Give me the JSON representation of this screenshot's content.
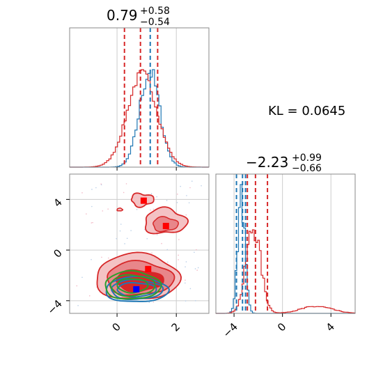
{
  "annotation": {
    "kl_text": "KL = 0.0645"
  },
  "colors": {
    "blue": "#1f77b4",
    "red": "#d62728",
    "green": "#2ca02c",
    "grid": "#cccccc",
    "frame": "#888888",
    "fill_red": "#e8868a",
    "fill_red_light": "#f4c2c4"
  },
  "chart_data": [
    {
      "type": "histogram",
      "panel": "marginal-x",
      "title_value": "0.79",
      "title_plus": "+0.58",
      "title_minus": "−0.54",
      "xlim": [
        -1.6,
        3.1
      ],
      "x_ticks": [
        0,
        2
      ],
      "grid": true,
      "series": [
        {
          "color_key": "blue",
          "mean": 1.1,
          "sd": 0.34,
          "quantiles": [
            1.12
          ]
        },
        {
          "color_key": "red",
          "mean": 0.85,
          "sd": 0.5,
          "quantiles": [
            0.25,
            0.79,
            1.37
          ]
        }
      ]
    },
    {
      "type": "histogram",
      "panel": "marginal-y",
      "title_value": "−2.23",
      "title_plus": "+0.99",
      "title_minus": "−0.66",
      "xlim": [
        -5.5,
        6.0
      ],
      "x_ticks": [
        -4,
        0,
        4
      ],
      "x_tick_labels": [
        "−4",
        "0",
        "4"
      ],
      "grid": true,
      "series": [
        {
          "color_key": "blue",
          "mean": -3.4,
          "sd": 0.3,
          "quantiles": [
            -3.8,
            -3.3,
            -3.05
          ]
        },
        {
          "color_key": "red",
          "mean": -2.4,
          "sd": 0.6,
          "quantiles": [
            -2.9,
            -2.23,
            -1.24
          ]
        }
      ]
    },
    {
      "type": "contour",
      "panel": "joint",
      "xlim": [
        -1.6,
        3.1
      ],
      "ylim": [
        -5.0,
        6.0
      ],
      "x_ticks": [
        0,
        2
      ],
      "y_ticks": [
        -4,
        0,
        4
      ],
      "y_tick_labels": [
        "−4",
        "0",
        "4"
      ],
      "grid": true,
      "series": [
        {
          "color_key": "red",
          "points": [
            [
              0.9,
              3.9
            ],
            [
              1.65,
              1.9
            ],
            [
              1.05,
              -1.5
            ]
          ]
        },
        {
          "color_key": "blue",
          "points": [
            [
              0.65,
              -3.1
            ]
          ]
        }
      ]
    }
  ]
}
